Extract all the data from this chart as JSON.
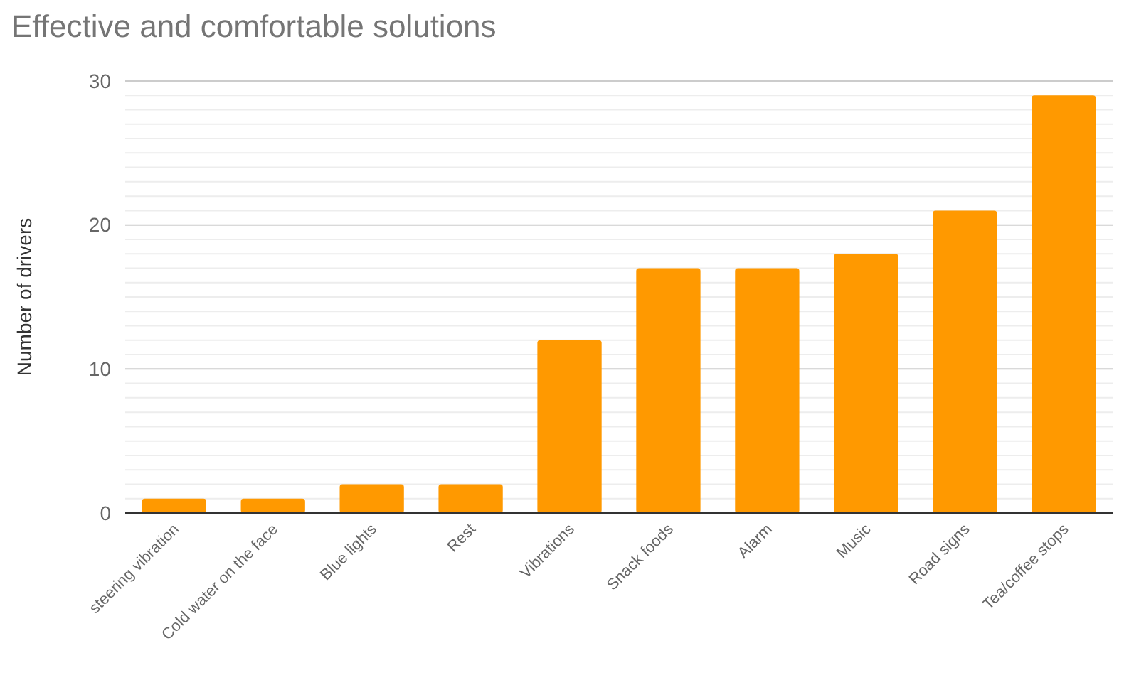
{
  "chart_data": {
    "type": "bar",
    "title": "Effective and comfortable solutions",
    "ylabel": "Number of drivers",
    "categories": [
      "steering vibration",
      "Cold water on the face",
      "Blue lights",
      "Rest",
      "Vibrations",
      "Snack foods",
      "Alarm",
      "Music",
      "Road signs",
      "Tea/coffee stops"
    ],
    "values": [
      1,
      1,
      2,
      2,
      12,
      17,
      17,
      18,
      21,
      29
    ],
    "color": "#ff9900",
    "ylim": [
      0,
      30
    ],
    "yticks": [
      0,
      {
        "value": 1,
        "label": null
      },
      {
        "value": 2,
        "label": null
      },
      {
        "value": 3,
        "label": null
      },
      {
        "value": 4,
        "label": null
      },
      {
        "value": 5,
        "label": null
      },
      {
        "value": 6,
        "label": null
      },
      {
        "value": 7,
        "label": null
      },
      {
        "value": 8,
        "label": null
      },
      {
        "value": 9,
        "label": null
      },
      10,
      {
        "value": 11,
        "label": null
      },
      {
        "value": 12,
        "label": null
      },
      {
        "value": 13,
        "label": null
      },
      {
        "value": 14,
        "label": null
      },
      {
        "value": 15,
        "label": null
      },
      {
        "value": 16,
        "label": null
      },
      {
        "value": 17,
        "label": null
      },
      {
        "value": 18,
        "label": null
      },
      {
        "value": 19,
        "label": null
      },
      20,
      {
        "value": 21,
        "label": null
      },
      {
        "value": 22,
        "label": null
      },
      {
        "value": 23,
        "label": null
      },
      {
        "value": 24,
        "label": null
      },
      {
        "value": 25,
        "label": null
      },
      {
        "value": 26,
        "label": null
      },
      {
        "value": 27,
        "label": null
      },
      {
        "value": 28,
        "label": null
      },
      {
        "value": 29,
        "label": null
      },
      30
    ],
    "grid": true
  }
}
